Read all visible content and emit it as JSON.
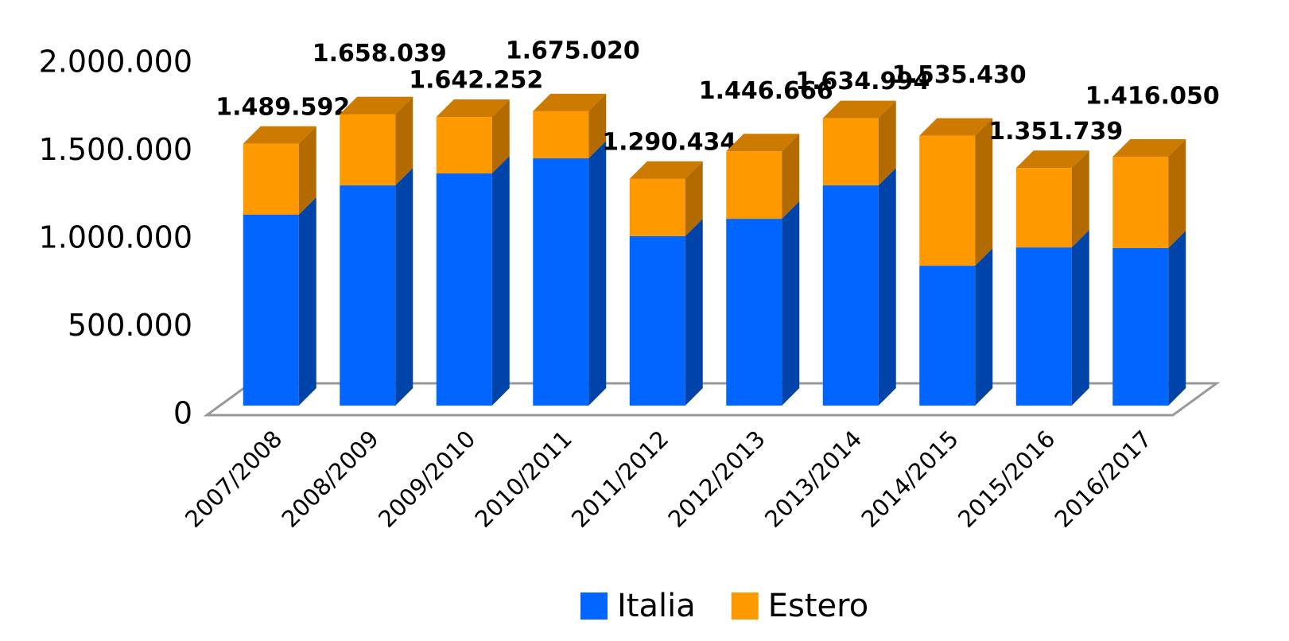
{
  "chart_data": {
    "type": "bar3d_stacked",
    "categories": [
      "2007/2008",
      "2008/2009",
      "2009/2010",
      "2010/2011",
      "2011/2012",
      "2012/2013",
      "2013/2014",
      "2014/2015",
      "2015/2016",
      "2016/2017"
    ],
    "series": [
      {
        "name": "Italia",
        "color": "#0066ff",
        "values": [
          1086000,
          1253000,
          1321000,
          1407000,
          964000,
          1063000,
          1253000,
          796000,
          900000,
          896000
        ]
      },
      {
        "name": "Estero",
        "color": "#ff9900",
        "values": [
          403592,
          405039,
          321252,
          268020,
          326434,
          383666,
          381994,
          739430,
          451739,
          520050
        ]
      }
    ],
    "totals": [
      1489592,
      1658039,
      1642252,
      1675020,
      1290434,
      1446666,
      1634994,
      1535430,
      1351739,
      1416050
    ],
    "total_labels": [
      "1.489.592",
      "1.658.039",
      "1.642.252",
      "1.675.020",
      "1.290.434",
      "1.446.666",
      "1.634.994",
      "1.535.430",
      "1.351.739",
      "1.416.050"
    ],
    "ylim": [
      0,
      2000000
    ],
    "yticks": [
      0,
      {
        "value": 500000,
        "label": "500.000"
      },
      {
        "value": 1000000,
        "label": "1.000.000"
      },
      {
        "value": 1500000,
        "label": "1.500.000"
      },
      {
        "value": 2000000,
        "label": "2.000.000"
      }
    ],
    "legend": "bottom"
  }
}
